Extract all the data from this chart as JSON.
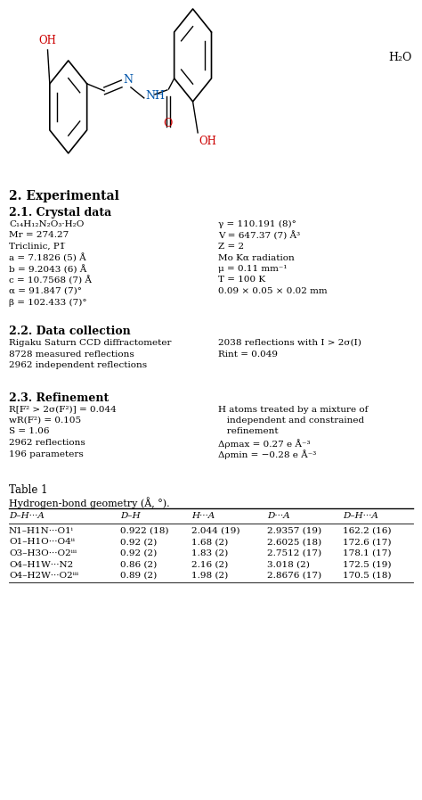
{
  "bg_color": "#ffffff",
  "text_color": "#000000",
  "section2_title": "2. Experimental",
  "section21_title": "2.1. Crystal data",
  "section22_title": "2.2. Data collection",
  "section23_title": "2.3. Refinement",
  "table_title": "Table 1",
  "table_subtitle": "Hydrogen-bond geometry (Å, °).",
  "crystal_left": [
    "C₁₄H₁₂N₂O₃·H₂O",
    "Mr = 274.27",
    "Triclinic, P1̅",
    "a = 7.1826 (5) Å",
    "b = 9.2043 (6) Å",
    "c = 10.7568 (7) Å",
    "α = 91.847 (7)°",
    "β = 102.433 (7)°"
  ],
  "crystal_right": [
    "γ = 110.191 (8)°",
    "V = 647.37 (7) Å³",
    "Z = 2",
    "Mo Kα radiation",
    "μ = 0.11 mm⁻¹",
    "T = 100 K",
    "0.09 × 0.05 × 0.02 mm"
  ],
  "datacol_left": [
    "Rigaku Saturn CCD diffractometer",
    "8728 measured reflections",
    "2962 independent reflections"
  ],
  "datacol_right": [
    "2038 reflections with I > 2σ(I)",
    "Rint = 0.049"
  ],
  "refine_left": [
    "R[F² > 2σ(F²)] = 0.044",
    "wR(F²) = 0.105",
    "S = 1.06",
    "2962 reflections",
    "196 parameters"
  ],
  "refine_right": [
    "H atoms treated by a mixture of",
    "   independent and constrained",
    "   refinement",
    "Δρmax = 0.27 e Å⁻³",
    "Δρmin = −0.28 e Å⁻³"
  ],
  "table_headers": [
    "D–H···A",
    "D–H",
    "H···A",
    "D···A",
    "D–H···A"
  ],
  "table_rows": [
    [
      "N1–H1N···O1ⁱ",
      "0.922 (18)",
      "2.044 (19)",
      "2.9357 (19)",
      "162.2 (16)"
    ],
    [
      "O1–H1O···O4ⁱⁱ",
      "0.92 (2)",
      "1.68 (2)",
      "2.6025 (18)",
      "172.6 (17)"
    ],
    [
      "O3–H3O···O2ⁱⁱⁱ",
      "0.92 (2)",
      "1.83 (2)",
      "2.7512 (17)",
      "178.1 (17)"
    ],
    [
      "O4–H1W···N2",
      "0.86 (2)",
      "2.16 (2)",
      "3.018 (2)",
      "172.5 (19)"
    ],
    [
      "O4–H2W···O2ⁱⁱⁱ",
      "0.89 (2)",
      "1.98 (2)",
      "2.8676 (17)",
      "170.5 (18)"
    ]
  ]
}
